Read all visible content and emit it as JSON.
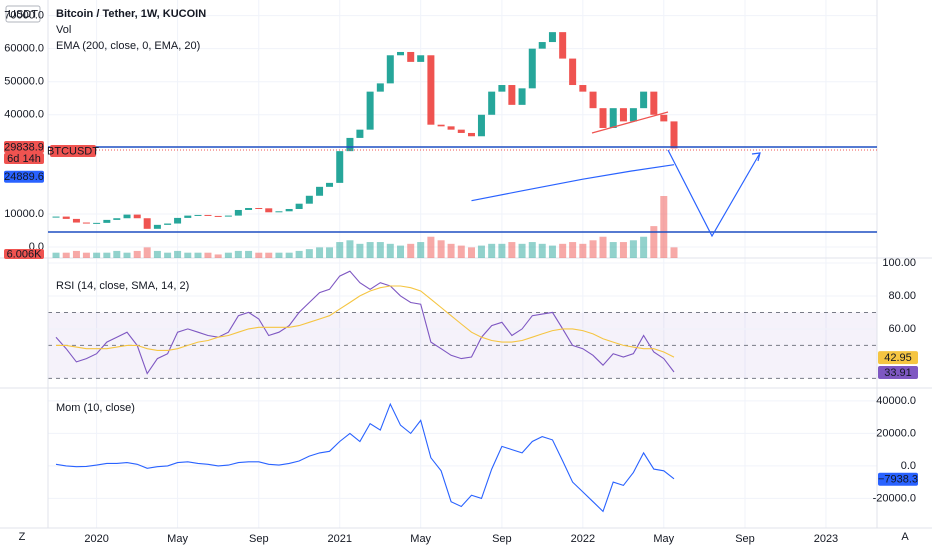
{
  "ui": {
    "currency": "USDT",
    "left_button": "Z",
    "right_button": "A"
  },
  "chart_data": [
    {
      "type": "candlestick",
      "title": "Bitcoin / Tether, 1W, KUCOIN",
      "countdown": "6d 14h",
      "x": [
        2019.833,
        2019.875,
        2019.917,
        2019.958,
        2020.0,
        2020.042,
        2020.083,
        2020.125,
        2020.167,
        2020.208,
        2020.25,
        2020.292,
        2020.333,
        2020.375,
        2020.417,
        2020.458,
        2020.5,
        2020.542,
        2020.583,
        2020.625,
        2020.667,
        2020.708,
        2020.75,
        2020.792,
        2020.833,
        2020.875,
        2020.917,
        2020.958,
        2021.0,
        2021.042,
        2021.083,
        2021.125,
        2021.167,
        2021.208,
        2021.25,
        2021.292,
        2021.333,
        2021.375,
        2021.417,
        2021.458,
        2021.5,
        2021.542,
        2021.583,
        2021.625,
        2021.667,
        2021.708,
        2021.75,
        2021.792,
        2021.833,
        2021.875,
        2021.917,
        2021.958,
        2022.0,
        2022.042,
        2022.083,
        2022.125,
        2022.167,
        2022.208,
        2022.25,
        2022.292,
        2022.333,
        2022.375
      ],
      "series": [
        {
          "name": "BTCUSDT",
          "up_color": "#26a69a",
          "down_color": "#ef5350",
          "values": [
            9200,
            8500,
            7400,
            7200,
            7300,
            8200,
            8700,
            9800,
            8700,
            5500,
            6700,
            7100,
            8800,
            9500,
            9700,
            9400,
            9200,
            9500,
            11200,
            11800,
            11700,
            10500,
            10800,
            11500,
            13100,
            15500,
            18200,
            19400,
            29000,
            33000,
            35500,
            47000,
            49500,
            58000,
            59000,
            56000,
            58000,
            37000,
            36500,
            35500,
            34500,
            33500,
            40000,
            47000,
            49000,
            43000,
            48000,
            60000,
            62000,
            65000,
            57000,
            49000,
            47000,
            42000,
            36000,
            42000,
            38000,
            42000,
            47000,
            40000,
            38000,
            29838.9
          ]
        },
        {
          "name": "Vol",
          "type": "bar",
          "up_color": "#26a69a",
          "down_color": "#ef5350",
          "values": [
            3,
            3,
            4,
            3,
            3,
            3,
            4,
            3,
            4,
            6,
            4,
            3,
            4,
            3,
            3,
            3,
            2,
            3,
            4,
            4,
            3,
            3,
            3,
            3,
            4,
            5,
            6,
            6,
            9,
            10,
            8,
            9,
            9,
            8,
            7,
            8,
            9,
            12,
            10,
            8,
            7,
            6,
            7,
            8,
            8,
            9,
            8,
            9,
            8,
            7,
            8,
            9,
            8,
            10,
            12,
            9,
            9,
            10,
            12,
            18,
            35,
            6.006
          ],
          "value_labels": [
            null,
            null,
            null,
            null,
            null,
            null,
            null,
            null,
            null,
            null,
            null,
            null,
            null,
            null,
            null,
            null,
            null,
            null,
            null,
            null,
            null,
            null,
            null,
            null,
            null,
            null,
            null,
            null,
            null,
            null,
            null,
            null,
            null,
            null,
            null,
            null,
            null,
            null,
            null,
            null,
            null,
            null,
            null,
            null,
            null,
            null,
            null,
            null,
            null,
            null,
            null,
            null,
            null,
            null,
            null,
            null,
            null,
            null,
            null,
            null,
            null,
            "6.006K"
          ]
        },
        {
          "name": "EMA (200, close, 0, EMA, 20)",
          "type": "line",
          "color": "#2962ff",
          "x": [
            2021.542,
            2021.75,
            2022.0,
            2022.2,
            2022.375
          ],
          "values": [
            14000,
            17000,
            20500,
            23000,
            24889.6
          ]
        }
      ],
      "xlim": [
        2019.8,
        2023.21
      ],
      "xticks": [
        2020,
        {
          "value": 2020.333,
          "label": "May"
        },
        {
          "value": 2020.667,
          "label": "Sep"
        },
        2021,
        {
          "value": 2021.333,
          "label": "May"
        },
        {
          "value": 2021.667,
          "label": "Sep"
        },
        2022,
        {
          "value": 2022.333,
          "label": "May"
        },
        {
          "value": 2022.667,
          "label": "Sep"
        },
        2023
      ],
      "ylim": [
        0,
        72000
      ],
      "yticks": [
        {
          "value": 70000,
          "label": "70000.0"
        },
        {
          "value": 60000,
          "label": "60000.0"
        },
        {
          "value": 50000,
          "label": "50000.0"
        },
        {
          "value": 40000,
          "label": "40000.0"
        },
        {
          "value": 10000,
          "label": "10000.0"
        },
        {
          "value": 0,
          "label": "0.0"
        }
      ]
    },
    {
      "type": "line",
      "title": "RSI (14, close, SMA, 14, 2)",
      "series": [
        {
          "color": "#7e57c2",
          "values": [
            55,
            48,
            40,
            42,
            45,
            52,
            55,
            58,
            50,
            33,
            42,
            45,
            58,
            60,
            58,
            56,
            55,
            58,
            68,
            70,
            66,
            56,
            58,
            62,
            70,
            76,
            82,
            84,
            92,
            95,
            88,
            84,
            88,
            86,
            80,
            76,
            75,
            52,
            48,
            44,
            42,
            43,
            55,
            62,
            64,
            56,
            60,
            68,
            69,
            70,
            60,
            50,
            48,
            44,
            38,
            45,
            43,
            45,
            56,
            46,
            42,
            33.91
          ]
        },
        {
          "color": "#f5c542",
          "values": [
            50,
            50,
            49,
            48,
            48,
            48,
            49,
            50,
            50,
            48,
            47,
            47,
            48,
            50,
            52,
            53,
            55,
            56,
            58,
            60,
            61,
            61,
            61,
            61,
            62,
            64,
            66,
            68,
            72,
            76,
            80,
            83,
            85,
            86,
            86,
            85,
            83,
            78,
            73,
            68,
            63,
            58,
            55,
            53,
            52,
            52,
            53,
            55,
            57,
            59,
            60,
            60,
            59,
            57,
            54,
            52,
            50,
            49,
            48,
            48,
            46,
            42.95
          ]
        }
      ],
      "band_levels": [
        30,
        50,
        70
      ],
      "ylim": [
        24.2,
        103
      ],
      "yticks": [
        {
          "value": 100,
          "label": "100.00"
        },
        {
          "value": 80,
          "label": "80.00"
        },
        {
          "value": 60,
          "label": "60.00"
        }
      ]
    },
    {
      "type": "line",
      "title": "Mom (10, close)",
      "series": [
        {
          "color": "#2962ff",
          "values": [
            1000,
            0,
            -500,
            -300,
            500,
            1500,
            1500,
            2000,
            1000,
            -1500,
            -500,
            0,
            2000,
            2500,
            1500,
            1000,
            0,
            500,
            2000,
            2500,
            2500,
            1000,
            500,
            1500,
            3000,
            6000,
            8000,
            9000,
            15000,
            20000,
            15000,
            26000,
            22000,
            38000,
            25000,
            20000,
            28000,
            5000,
            -3000,
            -22000,
            -25000,
            -18000,
            -20000,
            -2000,
            12000,
            10000,
            8000,
            15000,
            18000,
            16000,
            3000,
            -10000,
            -16000,
            -22000,
            -28000,
            -10000,
            -12000,
            -4000,
            8000,
            -2000,
            -3000,
            -7938.3
          ],
          "value_labels": [
            null,
            null,
            null,
            null,
            null,
            null,
            null,
            null,
            null,
            null,
            null,
            null,
            null,
            null,
            null,
            null,
            null,
            null,
            null,
            null,
            null,
            null,
            null,
            null,
            null,
            null,
            null,
            null,
            null,
            null,
            null,
            null,
            null,
            null,
            null,
            null,
            null,
            null,
            null,
            null,
            null,
            null,
            null,
            null,
            null,
            null,
            null,
            null,
            null,
            null,
            null,
            null,
            null,
            null,
            null,
            null,
            null,
            null,
            null,
            null,
            null,
            "−7938.3"
          ]
        }
      ],
      "ylim": [
        -38200,
        47900
      ],
      "yticks": [
        {
          "value": 40000,
          "label": "40000.0"
        },
        {
          "value": 20000,
          "label": "20000.0"
        },
        {
          "value": 0,
          "label": "0.0"
        },
        {
          "value": -20000,
          "label": "-20000.0"
        }
      ]
    }
  ]
}
